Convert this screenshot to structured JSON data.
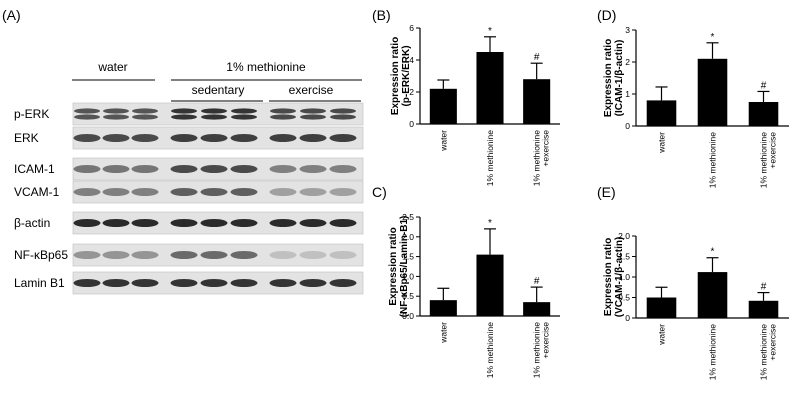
{
  "figure": {
    "blot": {
      "panel_label": "(A)",
      "group_water": "water",
      "group_methionine": "1% methionine",
      "subgroup_sedentary": "sedentary",
      "subgroup_exercise": "exercise",
      "rows": [
        {
          "name": "p-ERK"
        },
        {
          "name": "ERK"
        },
        {
          "name": "ICAM-1"
        },
        {
          "name": "VCAM-1"
        },
        {
          "name": "β-actin"
        },
        {
          "name": "NF-κBp65"
        },
        {
          "name": "Lamin B1"
        }
      ]
    }
  },
  "chart_data": [
    {
      "id": "B",
      "type": "bar",
      "panel_label": "(B)",
      "categories": [
        "water",
        "1% methionine",
        "1% methionine\n+exercise"
      ],
      "values": [
        2.2,
        4.5,
        2.8
      ],
      "errors": [
        0.55,
        0.95,
        1.0
      ],
      "annotations": [
        "",
        "*",
        "#"
      ],
      "ylabel": "Expression ratio\n(p-ERK/ERK)",
      "ylim": [
        0,
        6
      ],
      "yticks": [
        "0",
        "2",
        "4",
        "6"
      ]
    },
    {
      "id": "D",
      "type": "bar",
      "panel_label": "(D)",
      "categories": [
        "water",
        "1% methionine",
        "1% methionine\n+exercise"
      ],
      "values": [
        0.8,
        2.1,
        0.75
      ],
      "errors": [
        0.42,
        0.5,
        0.33
      ],
      "annotations": [
        "",
        "*",
        "#"
      ],
      "ylabel": "Expression ratio\n(ICAM-1/β-actin)",
      "ylim": [
        0,
        3
      ],
      "yticks": [
        "0",
        "1",
        "2",
        "3"
      ]
    },
    {
      "id": "C",
      "type": "bar",
      "panel_label": "C)",
      "categories": [
        "water",
        "1% methionine",
        "1% methionine\n+exercise"
      ],
      "values": [
        0.4,
        1.55,
        0.35
      ],
      "errors": [
        0.3,
        0.65,
        0.38
      ],
      "annotations": [
        "",
        "*",
        "#"
      ],
      "ylabel": "Expression ratio\n(NF-κBp65/Lamin-B1)",
      "ylim": [
        0,
        2.5
      ],
      "yticks": [
        "0.0",
        "0.5",
        "1.0",
        "1.5",
        "2.0",
        "2.5"
      ]
    },
    {
      "id": "E",
      "type": "bar",
      "panel_label": "(E)",
      "categories": [
        "water",
        "1% methionine",
        "1% methionine\n+exercise"
      ],
      "values": [
        0.5,
        1.12,
        0.42
      ],
      "errors": [
        0.25,
        0.35,
        0.2
      ],
      "annotations": [
        "",
        "*",
        "#"
      ],
      "ylabel": "Expression ratio\n(VCAM-1/β-actin)",
      "ylim": [
        0,
        2.0
      ],
      "yticks": [
        "0",
        "0.5",
        "1.0",
        "1.5",
        "2.0"
      ]
    }
  ]
}
